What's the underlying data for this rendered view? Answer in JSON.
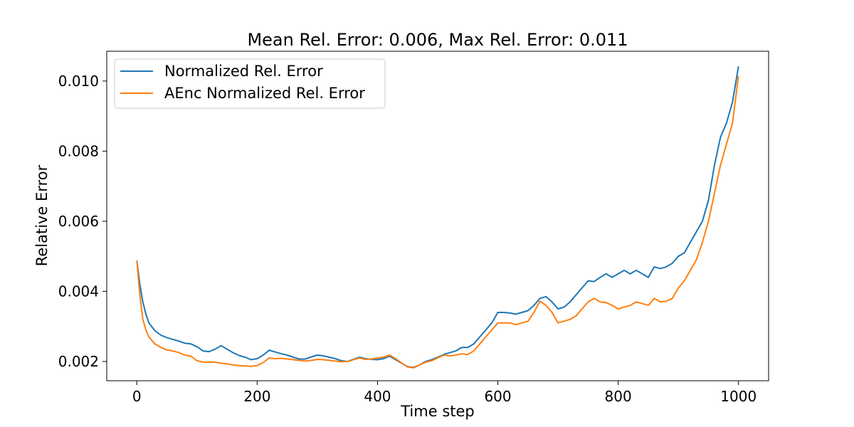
{
  "chart_data": {
    "type": "line",
    "title": "Mean Rel. Error: 0.006, Max Rel. Error: 0.011",
    "xlabel": "Time step",
    "ylabel": "Relative Error",
    "xlim": [
      -50,
      1050
    ],
    "ylim": [
      0.00145,
      0.01085
    ],
    "xticks": [
      0,
      200,
      400,
      600,
      800,
      1000
    ],
    "xtick_labels": [
      "0",
      "200",
      "400",
      "600",
      "800",
      "1000"
    ],
    "yticks": [
      0.002,
      0.004,
      0.006,
      0.008,
      0.01
    ],
    "ytick_labels": [
      "0.002",
      "0.004",
      "0.006",
      "0.008",
      "0.010"
    ],
    "grid": false,
    "legend_position": "top-left",
    "series": [
      {
        "name": "Normalized Rel. Error",
        "color": "#1f77b4",
        "x": [
          0,
          5,
          10,
          15,
          20,
          30,
          40,
          50,
          60,
          70,
          80,
          90,
          100,
          110,
          120,
          130,
          140,
          150,
          160,
          170,
          180,
          190,
          200,
          210,
          220,
          230,
          240,
          250,
          260,
          270,
          280,
          290,
          300,
          310,
          320,
          330,
          340,
          350,
          360,
          370,
          380,
          390,
          400,
          410,
          420,
          430,
          440,
          450,
          460,
          470,
          480,
          490,
          500,
          510,
          520,
          530,
          540,
          550,
          560,
          570,
          580,
          590,
          600,
          610,
          620,
          630,
          640,
          650,
          660,
          670,
          680,
          690,
          700,
          710,
          720,
          730,
          740,
          750,
          760,
          770,
          780,
          790,
          800,
          810,
          820,
          830,
          840,
          850,
          860,
          870,
          880,
          890,
          900,
          910,
          920,
          930,
          940,
          950,
          960,
          970,
          980,
          990,
          1000
        ],
        "y": [
          0.00488,
          0.0042,
          0.0037,
          0.00335,
          0.0031,
          0.00288,
          0.00275,
          0.00268,
          0.00263,
          0.00258,
          0.00252,
          0.0025,
          0.00242,
          0.0023,
          0.00228,
          0.00235,
          0.00245,
          0.00235,
          0.00225,
          0.00217,
          0.00212,
          0.00205,
          0.00208,
          0.00218,
          0.00232,
          0.00227,
          0.00222,
          0.00218,
          0.00212,
          0.00207,
          0.00207,
          0.00213,
          0.00218,
          0.00216,
          0.00212,
          0.00208,
          0.00202,
          0.002,
          0.00206,
          0.00212,
          0.00208,
          0.00206,
          0.00205,
          0.00208,
          0.00215,
          0.00205,
          0.00195,
          0.00185,
          0.00183,
          0.0019,
          0.002,
          0.00205,
          0.00212,
          0.0022,
          0.00225,
          0.0023,
          0.0024,
          0.0024,
          0.0025,
          0.0027,
          0.0029,
          0.0031,
          0.0034,
          0.0034,
          0.00338,
          0.00335,
          0.0034,
          0.00345,
          0.0036,
          0.0038,
          0.00385,
          0.0037,
          0.0035,
          0.00355,
          0.0037,
          0.0039,
          0.0041,
          0.0043,
          0.00428,
          0.0044,
          0.0045,
          0.0044,
          0.0045,
          0.0046,
          0.0045,
          0.0046,
          0.0045,
          0.0044,
          0.0047,
          0.00465,
          0.0047,
          0.0048,
          0.005,
          0.0051,
          0.0054,
          0.0057,
          0.006,
          0.0066,
          0.0076,
          0.0084,
          0.0088,
          0.0094,
          0.01042
        ]
      },
      {
        "name": "AEnc Normalized Rel. Error",
        "color": "#ff7f0e",
        "x": [
          0,
          5,
          10,
          15,
          20,
          30,
          40,
          50,
          60,
          70,
          80,
          90,
          100,
          110,
          120,
          130,
          140,
          150,
          160,
          170,
          180,
          190,
          200,
          210,
          220,
          230,
          240,
          250,
          260,
          270,
          280,
          290,
          300,
          310,
          320,
          330,
          340,
          350,
          360,
          370,
          380,
          390,
          400,
          410,
          420,
          430,
          440,
          450,
          460,
          470,
          480,
          490,
          500,
          510,
          520,
          530,
          540,
          550,
          560,
          570,
          580,
          590,
          600,
          610,
          620,
          630,
          640,
          650,
          660,
          670,
          680,
          690,
          700,
          710,
          720,
          730,
          740,
          750,
          760,
          770,
          780,
          790,
          800,
          810,
          820,
          830,
          840,
          850,
          860,
          870,
          880,
          890,
          900,
          910,
          920,
          930,
          940,
          950,
          960,
          970,
          980,
          990,
          1000
        ],
        "y": [
          0.00488,
          0.0039,
          0.0032,
          0.0029,
          0.0027,
          0.0025,
          0.0024,
          0.00233,
          0.0023,
          0.00225,
          0.00218,
          0.00215,
          0.00202,
          0.00198,
          0.00198,
          0.00198,
          0.00195,
          0.00193,
          0.0019,
          0.00188,
          0.00187,
          0.00186,
          0.00188,
          0.00197,
          0.0021,
          0.00208,
          0.00209,
          0.00207,
          0.00205,
          0.00203,
          0.00201,
          0.00203,
          0.00206,
          0.00205,
          0.00203,
          0.00201,
          0.00199,
          0.002,
          0.00205,
          0.0021,
          0.00206,
          0.00207,
          0.0021,
          0.00212,
          0.00218,
          0.00208,
          0.00196,
          0.00184,
          0.00182,
          0.0019,
          0.00198,
          0.00202,
          0.0021,
          0.00218,
          0.00216,
          0.00218,
          0.00222,
          0.0022,
          0.0023,
          0.0025,
          0.0027,
          0.0029,
          0.0031,
          0.0031,
          0.0031,
          0.00305,
          0.0031,
          0.00315,
          0.0034,
          0.00372,
          0.0036,
          0.0034,
          0.0031,
          0.00315,
          0.0032,
          0.0033,
          0.0035,
          0.0037,
          0.0038,
          0.0037,
          0.00368,
          0.0036,
          0.0035,
          0.00355,
          0.0036,
          0.0037,
          0.00365,
          0.0036,
          0.0038,
          0.0037,
          0.00372,
          0.0038,
          0.0041,
          0.0043,
          0.0046,
          0.0049,
          0.0054,
          0.006,
          0.0068,
          0.0076,
          0.0082,
          0.0088,
          0.01015
        ]
      }
    ]
  }
}
